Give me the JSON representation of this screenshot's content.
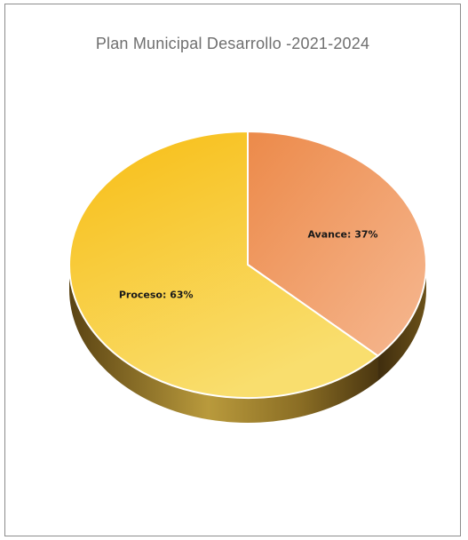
{
  "chart_data": {
    "type": "pie",
    "title": "Plan Municipal Desarrollo -2021-2024",
    "categories": [
      "Avance",
      "Proceso"
    ],
    "values": [
      37,
      63
    ],
    "labels": [
      "Avance:  37%",
      "Proceso: 63%"
    ],
    "colors": {
      "avance_light": "#f4a97d",
      "avance_dark": "#ec8a4a",
      "proceso_light": "#f7d864",
      "proceso_dark": "#f7b90c",
      "side_dark": "#6b5119",
      "side_light": "#a98a33"
    },
    "style": "3d-pie",
    "legend": "none"
  }
}
